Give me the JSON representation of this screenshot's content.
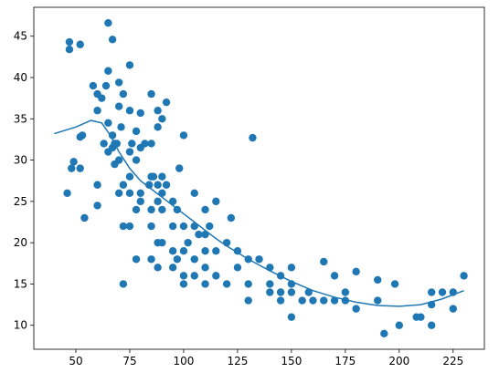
{
  "chart_data": {
    "type": "scatter",
    "xlim": [
      30.5,
      239.5
    ],
    "ylim": [
      7.1,
      48.5
    ],
    "xticks": [
      50,
      75,
      100,
      125,
      150,
      175,
      200,
      225
    ],
    "yticks": [
      10,
      15,
      20,
      25,
      30,
      35,
      40,
      45
    ],
    "series": [
      {
        "type": "scatter",
        "color": "#1f77b4",
        "x": [
          46,
          47,
          47,
          48,
          49,
          52,
          52,
          52,
          53,
          54,
          58,
          60,
          60,
          60,
          60,
          62,
          63,
          64,
          65,
          65,
          65,
          65,
          67,
          67,
          67,
          68,
          68,
          69,
          70,
          70,
          70,
          70,
          71,
          72,
          72,
          72,
          72,
          75,
          75,
          75,
          75,
          75,
          75,
          76,
          78,
          78,
          78,
          78,
          80,
          80,
          80,
          80,
          82,
          84,
          85,
          85,
          85,
          85,
          85,
          85,
          86,
          88,
          88,
          88,
          88,
          88,
          88,
          90,
          90,
          90,
          90,
          90,
          92,
          92,
          95,
          95,
          95,
          95,
          97,
          97,
          98,
          100,
          100,
          100,
          100,
          100,
          102,
          105,
          105,
          105,
          105,
          107,
          110,
          110,
          110,
          110,
          110,
          112,
          115,
          115,
          115,
          120,
          120,
          122,
          125,
          125,
          130,
          130,
          130,
          132,
          135,
          140,
          140,
          140,
          145,
          145,
          145,
          150,
          150,
          150,
          150,
          155,
          158,
          160,
          165,
          165,
          170,
          170,
          175,
          175,
          180,
          180,
          190,
          190,
          193,
          198,
          200,
          208,
          210,
          215,
          215,
          215,
          220,
          225,
          225,
          230
        ],
        "values": [
          26,
          44.3,
          43.4,
          29,
          29.8,
          44,
          29,
          32.8,
          33,
          23,
          39,
          36,
          38,
          27,
          24.5,
          37.5,
          32,
          39,
          46.6,
          40.8,
          34.5,
          31,
          44.6,
          33,
          31.5,
          32,
          29.5,
          32,
          39.4,
          36.5,
          30,
          26,
          34,
          38,
          27,
          22,
          15,
          41.5,
          36,
          31,
          28,
          26,
          22,
          32,
          33.5,
          30,
          24,
          18,
          35.7,
          26,
          25,
          31.5,
          32,
          27,
          38,
          32,
          28,
          24,
          22,
          18,
          28,
          36,
          34,
          27,
          25,
          20,
          17,
          35,
          28,
          26,
          24,
          20,
          37,
          27,
          25,
          22,
          19,
          17,
          24,
          18,
          29,
          33,
          22,
          19,
          16,
          15,
          20,
          26,
          22,
          18,
          16,
          21,
          24,
          21,
          19,
          17,
          15,
          22,
          25,
          19,
          16,
          20,
          15,
          23,
          19,
          17,
          18,
          15,
          13,
          32.7,
          18,
          17,
          15,
          14,
          16,
          14,
          13,
          17,
          15,
          14,
          11,
          13,
          14,
          13,
          17.7,
          13,
          16,
          13,
          14,
          13,
          16.5,
          12,
          15.5,
          13,
          9,
          15,
          10,
          11,
          11,
          14,
          12.5,
          10,
          14,
          14,
          12,
          16
        ]
      },
      {
        "type": "line",
        "color": "#1f77b4",
        "x": [
          40,
          50,
          57,
          62,
          66,
          70,
          75,
          80,
          85,
          90,
          95,
          100,
          105,
          110,
          115,
          120,
          125,
          130,
          135,
          140,
          150,
          160,
          170,
          180,
          190,
          200,
          210,
          220,
          230
        ],
        "values": [
          33.2,
          34,
          34.8,
          34.5,
          33,
          31,
          29,
          27.5,
          26.5,
          25.5,
          24.5,
          23.5,
          22.5,
          21.5,
          20.5,
          19.6,
          18.8,
          18,
          17.3,
          16.6,
          15.3,
          14.2,
          13.4,
          12.8,
          12.4,
          12.3,
          12.5,
          13.2,
          14.2
        ]
      }
    ]
  }
}
